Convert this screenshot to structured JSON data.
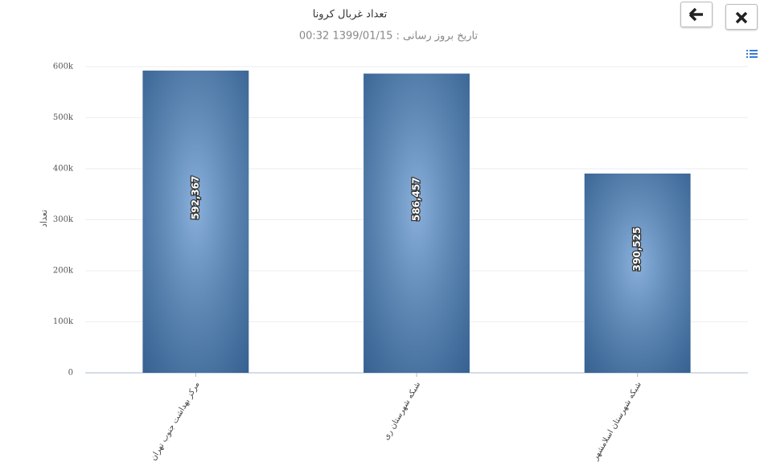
{
  "chart_data": {
    "type": "bar",
    "title": "تعداد غربال کرونا",
    "subtitle": "تاریخ بروز رسانی : 1399/01/15 00:32",
    "y_label": "تعداد",
    "categories": [
      "مرکز بهداشت جنوب تهران",
      "شبکه شهرستان ری",
      "شبکه شهرستان اسلامشهر"
    ],
    "values": [
      592367,
      586457,
      390525
    ],
    "value_labels": [
      "592,367",
      "586,457",
      "390,525"
    ],
    "color": "#4a86c8",
    "ylim": [
      0,
      600000
    ],
    "yticks": [
      0,
      {
        "value": 100000,
        "label": "100k"
      },
      {
        "value": 200000,
        "label": "200k"
      },
      {
        "value": 300000,
        "label": "300k"
      },
      {
        "value": 400000,
        "label": "400k"
      },
      {
        "value": 500000,
        "label": "500k"
      },
      {
        "value": 600000,
        "label": "600k"
      }
    ],
    "grid": true
  }
}
